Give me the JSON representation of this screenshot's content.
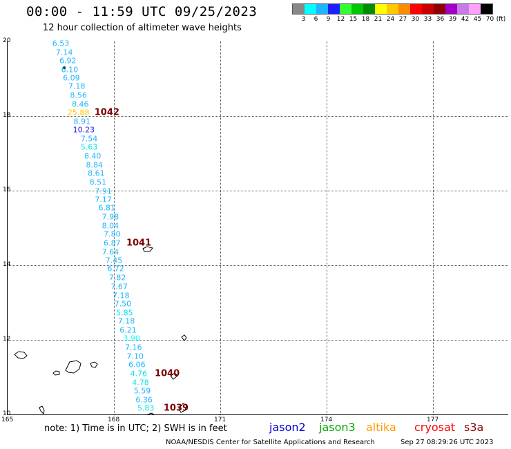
{
  "header": {
    "title": "00:00 - 11:59 UTC 09/25/2023",
    "subtitle": "12 hour collection of altimeter wave heights"
  },
  "legend": {
    "ticks": [
      "3",
      "6",
      "9",
      "12",
      "15",
      "18",
      "21",
      "24",
      "27",
      "30",
      "33",
      "36",
      "39",
      "42",
      "45",
      "70"
    ],
    "unit": "(ft)",
    "colors": [
      "#888888",
      "#00ffff",
      "#1eb4ff",
      "#1e1eff",
      "#32ff32",
      "#00c800",
      "#008c00",
      "#ffff00",
      "#ffc800",
      "#ff8c00",
      "#ff0000",
      "#c80000",
      "#8c0000",
      "#a000c8",
      "#c87ae6",
      "#ffa0ff",
      "#000000"
    ]
  },
  "axes": {
    "lat_labels": [
      "20",
      "18",
      "16",
      "14",
      "12",
      "10"
    ],
    "lon_labels": [
      "165",
      "168",
      "171",
      "174",
      "177"
    ]
  },
  "wave_heights": [
    {
      "lon": 166.5,
      "lat": 19.95,
      "v": "6.53",
      "color": "#1eb4ff"
    },
    {
      "lon": 166.6,
      "lat": 19.71,
      "v": "7.14",
      "color": "#1eb4ff"
    },
    {
      "lon": 166.7,
      "lat": 19.48,
      "v": "6.92",
      "color": "#1eb4ff"
    },
    {
      "lon": 166.75,
      "lat": 19.25,
      "v": "6.10",
      "color": "#1eb4ff"
    },
    {
      "lon": 166.8,
      "lat": 19.02,
      "v": "6.09",
      "color": "#1eb4ff"
    },
    {
      "lon": 166.95,
      "lat": 18.79,
      "v": "7.18",
      "color": "#1eb4ff"
    },
    {
      "lon": 167.0,
      "lat": 18.55,
      "v": "8.56",
      "color": "#1eb4ff"
    },
    {
      "lon": 167.05,
      "lat": 18.32,
      "v": "8.46",
      "color": "#1eb4ff"
    },
    {
      "lon": 167.0,
      "lat": 18.1,
      "v": "25.88",
      "color": "#ffc800"
    },
    {
      "lon": 167.1,
      "lat": 17.86,
      "v": "8.91",
      "color": "#1eb4ff"
    },
    {
      "lon": 167.15,
      "lat": 17.63,
      "v": "10.23",
      "color": "#1e1eff"
    },
    {
      "lon": 167.3,
      "lat": 17.39,
      "v": "7.54",
      "color": "#1eb4ff"
    },
    {
      "lon": 167.3,
      "lat": 17.16,
      "v": "5.63",
      "color": "#00e6e6"
    },
    {
      "lon": 167.4,
      "lat": 16.92,
      "v": "8.40",
      "color": "#1eb4ff"
    },
    {
      "lon": 167.45,
      "lat": 16.69,
      "v": "8.84",
      "color": "#1eb4ff"
    },
    {
      "lon": 167.5,
      "lat": 16.46,
      "v": "8.61",
      "color": "#1eb4ff"
    },
    {
      "lon": 167.55,
      "lat": 16.22,
      "v": "8.51",
      "color": "#1eb4ff"
    },
    {
      "lon": 167.7,
      "lat": 15.99,
      "v": "7.91",
      "color": "#1eb4ff"
    },
    {
      "lon": 167.7,
      "lat": 15.76,
      "v": "7.17",
      "color": "#1eb4ff"
    },
    {
      "lon": 167.8,
      "lat": 15.53,
      "v": "6.81",
      "color": "#1eb4ff"
    },
    {
      "lon": 167.9,
      "lat": 15.29,
      "v": "7.98",
      "color": "#1eb4ff"
    },
    {
      "lon": 167.9,
      "lat": 15.06,
      "v": "8.04",
      "color": "#1eb4ff"
    },
    {
      "lon": 167.95,
      "lat": 14.83,
      "v": "7.80",
      "color": "#1eb4ff"
    },
    {
      "lon": 167.95,
      "lat": 14.59,
      "v": "6.87",
      "color": "#1eb4ff"
    },
    {
      "lon": 167.9,
      "lat": 14.36,
      "v": "7.64",
      "color": "#1eb4ff"
    },
    {
      "lon": 168.0,
      "lat": 14.13,
      "v": "7.45",
      "color": "#1eb4ff"
    },
    {
      "lon": 168.05,
      "lat": 13.9,
      "v": "6.72",
      "color": "#1eb4ff"
    },
    {
      "lon": 168.1,
      "lat": 13.66,
      "v": "7.82",
      "color": "#1eb4ff"
    },
    {
      "lon": 168.15,
      "lat": 13.43,
      "v": "7.67",
      "color": "#1eb4ff"
    },
    {
      "lon": 168.2,
      "lat": 13.19,
      "v": "7.18",
      "color": "#1eb4ff"
    },
    {
      "lon": 168.25,
      "lat": 12.96,
      "v": "7.50",
      "color": "#1eb4ff"
    },
    {
      "lon": 168.3,
      "lat": 12.73,
      "v": "5.85",
      "color": "#00e6e6"
    },
    {
      "lon": 168.35,
      "lat": 12.5,
      "v": "7.18",
      "color": "#1eb4ff"
    },
    {
      "lon": 168.4,
      "lat": 12.26,
      "v": "6.21",
      "color": "#1eb4ff"
    },
    {
      "lon": 168.5,
      "lat": 12.03,
      "v": "3.90",
      "color": "#00ffff"
    },
    {
      "lon": 168.55,
      "lat": 11.8,
      "v": "7.16",
      "color": "#1eb4ff"
    },
    {
      "lon": 168.6,
      "lat": 11.56,
      "v": "7.10",
      "color": "#1eb4ff"
    },
    {
      "lon": 168.65,
      "lat": 11.33,
      "v": "6.06",
      "color": "#1eb4ff"
    },
    {
      "lon": 168.7,
      "lat": 11.09,
      "v": "4.76",
      "color": "#00e6e6"
    },
    {
      "lon": 168.75,
      "lat": 10.86,
      "v": "4.78",
      "color": "#00e6e6"
    },
    {
      "lon": 168.8,
      "lat": 10.63,
      "v": "5.59",
      "color": "#1eb4ff"
    },
    {
      "lon": 168.85,
      "lat": 10.39,
      "v": "6.36",
      "color": "#1eb4ff"
    },
    {
      "lon": 168.9,
      "lat": 10.16,
      "v": "5.83",
      "color": "#00e6e6"
    }
  ],
  "pressure_labels": [
    {
      "lon": 167.45,
      "lat": 18.1,
      "v": "1042"
    },
    {
      "lon": 168.35,
      "lat": 14.59,
      "v": "1041"
    },
    {
      "lon": 169.15,
      "lat": 11.09,
      "v": "1040"
    },
    {
      "lon": 169.4,
      "lat": 10.16,
      "v": "1039"
    }
  ],
  "footer": {
    "note": "note: 1) Time is in UTC; 2) SWH is in feet",
    "satellites": [
      {
        "label": "jason2",
        "color": "#0000cc"
      },
      {
        "label": "jason3",
        "color": "#00aa00"
      },
      {
        "label": "altika",
        "color": "#ff9900"
      },
      {
        "label": "cryosat",
        "color": "#ff0000"
      },
      {
        "label": "s3a",
        "color": "#8b0000"
      }
    ],
    "credit": "NOAA/NESDIS Center for Satellite Applications and Research",
    "timestamp": "Sep 27 08:29:26 UTC 2023"
  }
}
